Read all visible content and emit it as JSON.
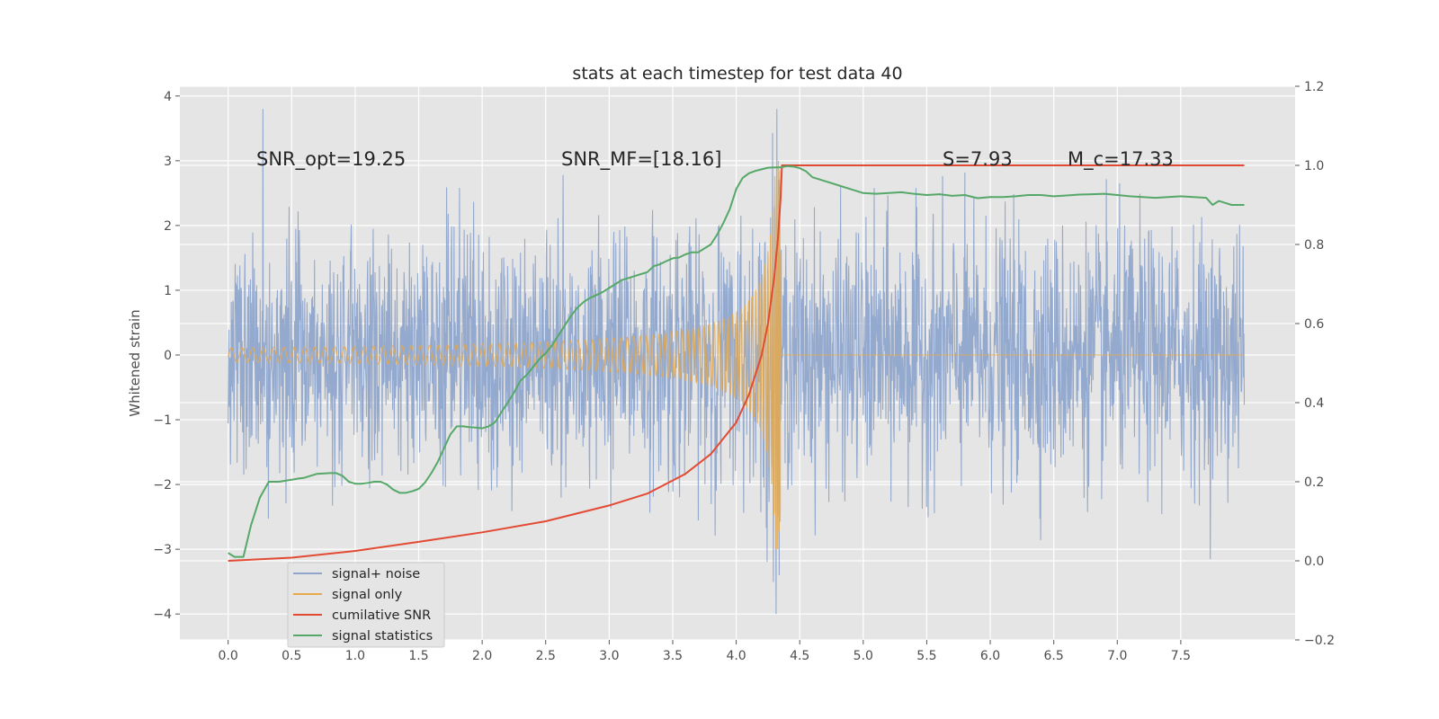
{
  "chart_data": {
    "type": "line",
    "title": "stats at each timestep for test data 40",
    "ylabel_left": "Whitened strain",
    "xlim": [
      -0.38,
      8.4
    ],
    "ylim_left": [
      -4.4,
      4.15
    ],
    "ylim_right": [
      -0.2,
      1.2
    ],
    "x_ticks": [
      0.0,
      0.5,
      1.0,
      1.5,
      2.0,
      2.5,
      3.0,
      3.5,
      4.0,
      4.5,
      5.0,
      5.5,
      6.0,
      6.5,
      7.0,
      7.5
    ],
    "x_tick_labels": [
      "0.0",
      "0.5",
      "1.0",
      "1.5",
      "2.0",
      "2.5",
      "3.0",
      "3.5",
      "4.0",
      "4.5",
      "5.0",
      "5.5",
      "6.0",
      "6.5",
      "7.0",
      "7.5"
    ],
    "y_left_ticks": [
      4,
      3,
      2,
      1,
      0,
      -1,
      -2,
      -3,
      -4
    ],
    "y_left_tick_labels": [
      "4",
      "3",
      "2",
      "1",
      "0",
      "−1",
      "−2",
      "−3",
      "−4"
    ],
    "y_right_ticks": [
      1.2,
      1.0,
      0.8,
      0.6,
      0.4,
      0.2,
      0.0,
      -0.2
    ],
    "y_right_tick_labels": [
      "1.2",
      "1.0",
      "0.8",
      "0.6",
      "0.4",
      "0.2",
      "0.0",
      "−0.2"
    ],
    "grid": true,
    "legend_placement": "lower-left",
    "annotations": [
      {
        "text": "SNR_opt=19.25",
        "x": 0.2,
        "y": 3.0
      },
      {
        "text": "SNR_MF=[18.16]",
        "x": 2.6,
        "y": 3.0
      },
      {
        "text": "S=7.93",
        "x": 5.6,
        "y": 3.0
      },
      {
        "text": "M_c=17.33",
        "x": 6.6,
        "y": 3.0
      }
    ],
    "series": [
      {
        "name": "signal+ noise",
        "axis": "left",
        "color": "#8fa5cc",
        "description_range": [
          -4.0,
          3.8
        ],
        "t_start": 0.0,
        "t_end": 8.0
      },
      {
        "name": "signal only",
        "axis": "left",
        "color": "#e6a94c",
        "merger_time": 4.35,
        "peak_amplitude": 3.0
      },
      {
        "name": "cumilative SNR",
        "axis": "right",
        "color": "#e24a33",
        "x": [
          0.0,
          0.5,
          1.0,
          1.5,
          2.0,
          2.5,
          3.0,
          3.3,
          3.6,
          3.8,
          4.0,
          4.1,
          4.2,
          4.25,
          4.3,
          4.33,
          4.35,
          4.36,
          4.38,
          8.0
        ],
        "y": [
          0.0,
          0.008,
          0.025,
          0.048,
          0.072,
          0.1,
          0.14,
          0.17,
          0.22,
          0.27,
          0.35,
          0.42,
          0.52,
          0.6,
          0.72,
          0.82,
          0.92,
          1.0,
          1.0,
          1.0
        ]
      },
      {
        "name": "signal statistics",
        "axis": "right",
        "color": "#55a868",
        "x": [
          0.0,
          0.05,
          0.12,
          0.18,
          0.25,
          0.32,
          0.4,
          0.5,
          0.55,
          0.6,
          0.7,
          0.8,
          0.85,
          0.9,
          0.95,
          1.0,
          1.05,
          1.1,
          1.15,
          1.2,
          1.25,
          1.3,
          1.35,
          1.4,
          1.45,
          1.5,
          1.55,
          1.6,
          1.65,
          1.7,
          1.75,
          1.8,
          1.85,
          1.9,
          1.95,
          2.0,
          2.05,
          2.1,
          2.15,
          2.2,
          2.25,
          2.3,
          2.35,
          2.4,
          2.45,
          2.5,
          2.55,
          2.6,
          2.65,
          2.7,
          2.75,
          2.8,
          2.85,
          2.9,
          2.95,
          3.0,
          3.05,
          3.1,
          3.15,
          3.2,
          3.25,
          3.3,
          3.35,
          3.4,
          3.45,
          3.5,
          3.55,
          3.6,
          3.65,
          3.7,
          3.75,
          3.8,
          3.85,
          3.9,
          3.95,
          4.0,
          4.05,
          4.1,
          4.15,
          4.2,
          4.25,
          4.3,
          4.35,
          4.4,
          4.45,
          4.5,
          4.55,
          4.6,
          4.7,
          4.8,
          4.9,
          5.0,
          5.1,
          5.2,
          5.3,
          5.4,
          5.5,
          5.6,
          5.7,
          5.8,
          5.9,
          6.0,
          6.1,
          6.2,
          6.3,
          6.4,
          6.5,
          6.6,
          6.7,
          6.8,
          6.9,
          7.0,
          7.1,
          7.2,
          7.3,
          7.4,
          7.5,
          7.6,
          7.7,
          7.75,
          7.8,
          7.85,
          7.9,
          7.95,
          8.0
        ],
        "y": [
          0.02,
          0.01,
          0.01,
          0.09,
          0.16,
          0.2,
          0.2,
          0.205,
          0.208,
          0.21,
          0.22,
          0.222,
          0.222,
          0.215,
          0.2,
          0.195,
          0.195,
          0.197,
          0.2,
          0.2,
          0.193,
          0.18,
          0.172,
          0.172,
          0.176,
          0.182,
          0.198,
          0.222,
          0.25,
          0.285,
          0.32,
          0.34,
          0.34,
          0.338,
          0.337,
          0.335,
          0.34,
          0.35,
          0.375,
          0.4,
          0.425,
          0.455,
          0.47,
          0.49,
          0.51,
          0.525,
          0.545,
          0.57,
          0.595,
          0.62,
          0.64,
          0.655,
          0.665,
          0.672,
          0.68,
          0.69,
          0.7,
          0.71,
          0.715,
          0.72,
          0.725,
          0.73,
          0.745,
          0.75,
          0.758,
          0.765,
          0.767,
          0.775,
          0.78,
          0.78,
          0.79,
          0.8,
          0.825,
          0.855,
          0.89,
          0.94,
          0.968,
          0.98,
          0.986,
          0.99,
          0.994,
          0.995,
          0.995,
          0.998,
          0.997,
          0.993,
          0.985,
          0.97,
          0.96,
          0.95,
          0.94,
          0.93,
          0.928,
          0.93,
          0.932,
          0.928,
          0.925,
          0.927,
          0.923,
          0.925,
          0.917,
          0.92,
          0.92,
          0.922,
          0.925,
          0.925,
          0.922,
          0.924,
          0.926,
          0.927,
          0.928,
          0.925,
          0.922,
          0.92,
          0.918,
          0.92,
          0.922,
          0.92,
          0.918,
          0.9,
          0.91,
          0.905,
          0.9,
          0.9,
          0.9
        ]
      }
    ]
  }
}
